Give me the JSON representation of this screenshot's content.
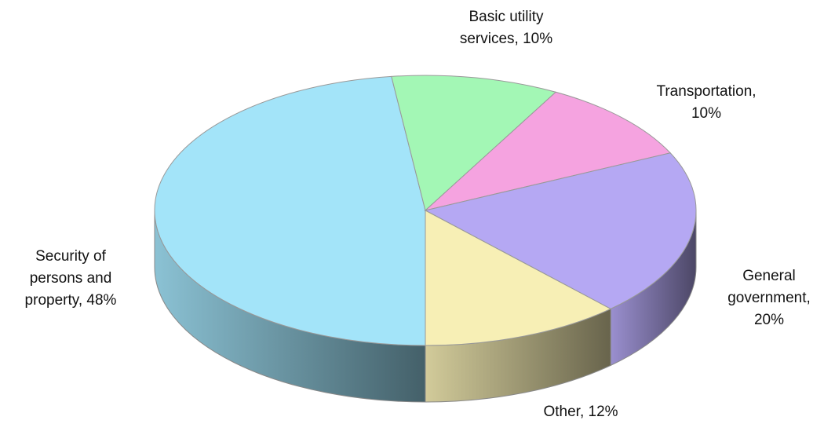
{
  "chart_data": {
    "type": "pie3d",
    "categories": [
      "Security of persons and property",
      "Basic utility services",
      "Transportation",
      "General government",
      "Other"
    ],
    "values": [
      48,
      10,
      10,
      20,
      12
    ],
    "value_labels": [
      "48%",
      "10%",
      "10%",
      "20%",
      "12%"
    ],
    "label_separator": ", ",
    "colors": [
      "#a3e4f9",
      "#a3f7b5",
      "#f5a3e0",
      "#b5a8f3",
      "#f7efb5"
    ]
  }
}
